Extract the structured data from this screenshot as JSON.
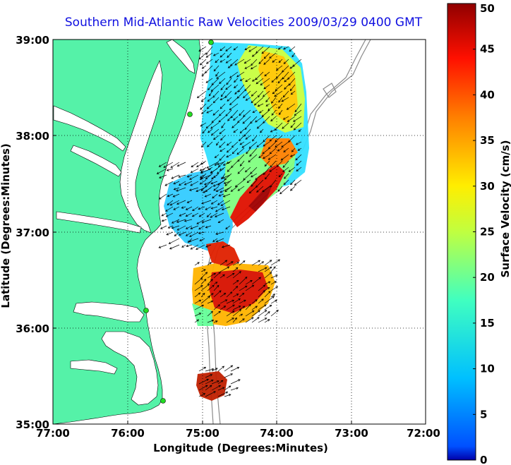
{
  "title": "Southern Mid-Atlantic Raw Velocities 2009/03/29 0400 GMT",
  "xlabel": "Longitude (Degrees:Minutes)",
  "ylabel": "Latitude (Degrees:Minutes)",
  "x_ticks": [
    "77:00",
    "76:00",
    "75:00",
    "74:00",
    "73:00",
    "72:00"
  ],
  "y_ticks": [
    "39:00",
    "38:00",
    "37:00",
    "36:00",
    "35:00"
  ],
  "colorbar": {
    "label": "Surface Velocity (cm/s)",
    "ticks": [
      "50",
      "45",
      "40",
      "35",
      "30",
      "25",
      "20",
      "15",
      "10",
      "5",
      "0"
    ],
    "range": [
      0,
      50
    ],
    "colormap": "jet"
  },
  "colors": {
    "land": "#55f2a8",
    "water": "#ffffff",
    "bathymetry": "#8a8a8a",
    "title": "#1010e0",
    "stations": "#22dd22"
  },
  "map": {
    "lon_range": [
      -77,
      -72
    ],
    "lat_range": [
      35,
      39
    ]
  }
}
